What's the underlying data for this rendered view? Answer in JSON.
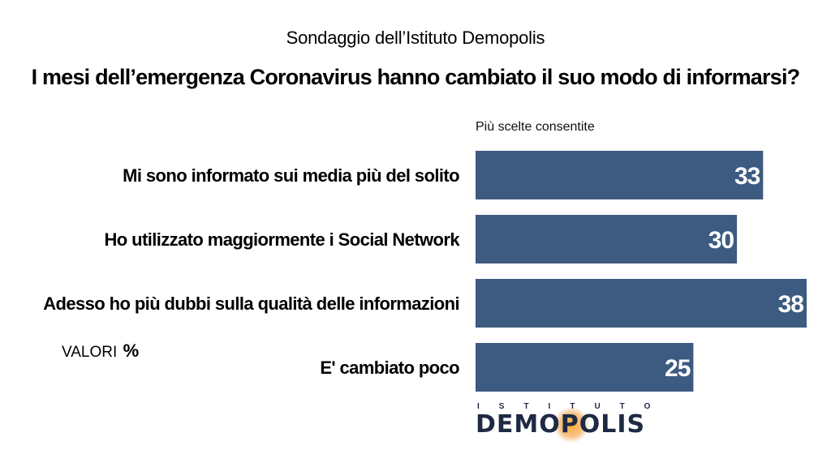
{
  "header": {
    "subtitle": "Sondaggio dell’Istituto Demopolis",
    "title": "I mesi dell’emergenza Coronavirus hanno cambiato il suo modo di informarsi?"
  },
  "note": "Più scelte consentite",
  "values_label": {
    "text": "VALORI",
    "unit": "%"
  },
  "logo": {
    "top": "ISTITUTO",
    "main": "DEMOPOLIS"
  },
  "colors": {
    "bar": "#3d5a80",
    "value_text": "#ffffff"
  },
  "chart_data": {
    "type": "bar",
    "orientation": "horizontal",
    "categories": [
      "Mi sono informato sui media più del solito",
      "Ho utilizzato maggiormente i Social Network",
      "Adesso ho più dubbi sulla qualità delle informazioni",
      "E' cambiato poco"
    ],
    "values": [
      33,
      30,
      38,
      25
    ],
    "xlim": [
      0,
      38
    ],
    "grid": false,
    "data_labels": true
  }
}
